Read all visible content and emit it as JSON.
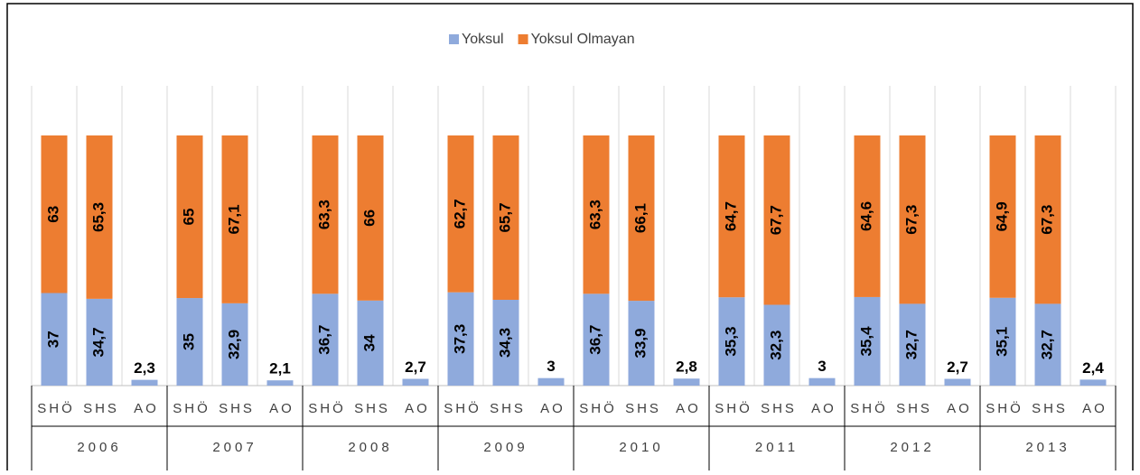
{
  "chart_data": {
    "type": "bar",
    "stacked": true,
    "groups": [
      "2006",
      "2007",
      "2008",
      "2009",
      "2010",
      "2011",
      "2012",
      "2013"
    ],
    "categories": [
      "SHÖ",
      "SHS",
      "AO",
      "SHÖ",
      "SHS",
      "AO",
      "SHÖ",
      "SHS",
      "AO",
      "SHÖ",
      "SHS",
      "AO",
      "SHÖ",
      "SHS",
      "AO",
      "SHÖ",
      "SHS",
      "AO",
      "SHÖ",
      "SHS",
      "AO",
      "SHÖ",
      "SHS",
      "AO"
    ],
    "series": [
      {
        "name": "Yoksul",
        "color": "#8faadc",
        "values": [
          37,
          34.7,
          2.3,
          35,
          32.9,
          2.1,
          36.7,
          34,
          2.7,
          37.3,
          34.3,
          3,
          36.7,
          33.9,
          2.8,
          35.3,
          32.3,
          3,
          35.4,
          32.7,
          2.7,
          35.1,
          32.7,
          2.4
        ],
        "value_labels": [
          "37",
          "34,7",
          "2,3",
          "35",
          "32,9",
          "2,1",
          "36,7",
          "34",
          "2,7",
          "37,3",
          "34,3",
          "3",
          "36,7",
          "33,9",
          "2,8",
          "35,3",
          "32,3",
          "3",
          "35,4",
          "32,7",
          "2,7",
          "35,1",
          "32,7",
          "2,4"
        ]
      },
      {
        "name": "Yoksul Olmayan",
        "color": "#ed7d31",
        "values": [
          63,
          65.3,
          null,
          65,
          67.1,
          null,
          63.3,
          66,
          null,
          62.7,
          65.7,
          null,
          63.3,
          66.1,
          null,
          64.7,
          67.7,
          null,
          64.6,
          67.3,
          null,
          64.9,
          67.3,
          null
        ],
        "value_labels": [
          "63",
          "65,3",
          null,
          "65",
          "67,1",
          null,
          "63,3",
          "66",
          null,
          "62,7",
          "65,7",
          null,
          "63,3",
          "66,1",
          null,
          "64,7",
          "67,7",
          null,
          "64,6",
          "67,3",
          null,
          "64,9",
          "67,3",
          null
        ]
      }
    ],
    "grid": true,
    "legend": "top"
  }
}
